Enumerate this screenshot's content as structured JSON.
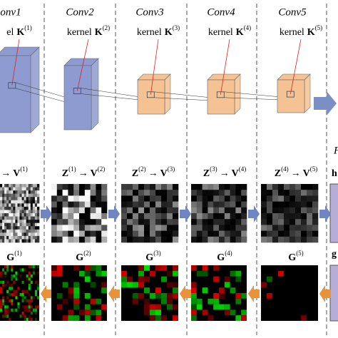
{
  "columns": [
    {
      "title": "onv1",
      "kernel": {
        "word": "el",
        "symbol": "K",
        "index": "(1)"
      },
      "map_label": {
        "arrow": "→",
        "v": "V",
        "v_index": "(1)"
      },
      "grad_label": {
        "g": "G",
        "g_index": "(1)"
      }
    },
    {
      "title": "Conv2",
      "kernel": {
        "word": "kernel",
        "symbol": "K",
        "index": "(2)"
      },
      "map_label": {
        "z": "Z",
        "z_index": "(1)",
        "arrow": "→",
        "v": "V",
        "v_index": "(2)"
      },
      "grad_label": {
        "g": "G",
        "g_index": "(2)"
      }
    },
    {
      "title": "Conv3",
      "kernel": {
        "word": "kernel",
        "symbol": "K",
        "index": "(3)"
      },
      "map_label": {
        "z": "Z",
        "z_index": "(2)",
        "arrow": "→",
        "v": "V",
        "v_index": "(3)"
      },
      "grad_label": {
        "g": "G",
        "g_index": "(3)"
      }
    },
    {
      "title": "Conv4",
      "kernel": {
        "word": "kernel",
        "symbol": "K",
        "index": "(4)"
      },
      "map_label": {
        "z": "Z",
        "z_index": "(3)",
        "arrow": "→",
        "v": "V",
        "v_index": "(4)"
      },
      "grad_label": {
        "g": "G",
        "g_index": "(4)"
      }
    },
    {
      "title": "Conv5",
      "kernel": {
        "word": "kernel",
        "symbol": "K",
        "index": "(5)"
      },
      "map_label": {
        "z": "Z",
        "z_index": "(4)",
        "arrow": "→",
        "v": "V",
        "v_index": "(5)"
      },
      "grad_label": {
        "g": "G",
        "g_index": "(5)"
      }
    }
  ],
  "right": {
    "f": "F",
    "h": "h",
    "g": "g"
  }
}
